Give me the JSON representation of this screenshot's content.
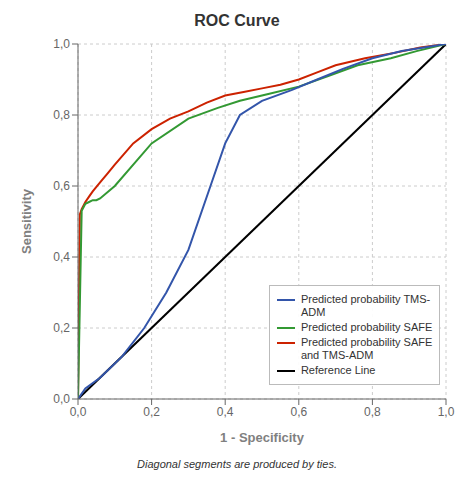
{
  "chart_data": {
    "type": "line",
    "title": "ROC Curve",
    "xlabel": "1 - Specificity",
    "ylabel": "Sensitivity",
    "annotations": [
      "Diagonal segments are produced by ties."
    ],
    "xlim": [
      0.0,
      1.0
    ],
    "ylim": [
      0.0,
      1.0
    ],
    "xticks": [
      {
        "value": 0.0,
        "label": "0,0"
      },
      {
        "value": 0.2,
        "label": "0,2"
      },
      {
        "value": 0.4,
        "label": "0,4"
      },
      {
        "value": 0.6,
        "label": "0,6"
      },
      {
        "value": 0.8,
        "label": "0,8"
      },
      {
        "value": 1.0,
        "label": "1,0"
      }
    ],
    "yticks": [
      {
        "value": 0.0,
        "label": "0,0"
      },
      {
        "value": 0.2,
        "label": "0,2"
      },
      {
        "value": 0.4,
        "label": "0,4"
      },
      {
        "value": 0.6,
        "label": "0,6"
      },
      {
        "value": 0.8,
        "label": "0,8"
      },
      {
        "value": 1.0,
        "label": "1,0"
      }
    ],
    "grid": true,
    "legend": "lower right",
    "series": [
      {
        "name": "Predicted probability TMS-\nADM",
        "color": "#3355aa",
        "x": [
          0.0,
          0.02,
          0.06,
          0.12,
          0.18,
          0.24,
          0.3,
          0.36,
          0.4,
          0.44,
          0.5,
          0.58,
          0.65,
          0.72,
          0.8,
          0.88,
          0.94,
          1.0
        ],
        "values": [
          0.0,
          0.03,
          0.06,
          0.12,
          0.2,
          0.3,
          0.42,
          0.6,
          0.72,
          0.8,
          0.84,
          0.87,
          0.9,
          0.93,
          0.96,
          0.98,
          0.99,
          1.0
        ]
      },
      {
        "name": "Predicted probability SAFE",
        "color": "#339933",
        "x": [
          0.0,
          0.01,
          0.02,
          0.03,
          0.04,
          0.05,
          0.06,
          0.1,
          0.2,
          0.3,
          0.38,
          0.44,
          0.52,
          0.6,
          0.68,
          0.76,
          0.85,
          0.92,
          1.0
        ],
        "values": [
          0.0,
          0.53,
          0.55,
          0.555,
          0.56,
          0.56,
          0.565,
          0.6,
          0.72,
          0.79,
          0.82,
          0.84,
          0.86,
          0.88,
          0.91,
          0.94,
          0.96,
          0.98,
          1.0
        ]
      },
      {
        "name": "Predicted probability SAFE\nand TMS-ADM",
        "color": "#cc2200",
        "x": [
          0.0,
          0.005,
          0.01,
          0.02,
          0.03,
          0.04,
          0.06,
          0.08,
          0.1,
          0.15,
          0.2,
          0.25,
          0.3,
          0.35,
          0.4,
          0.45,
          0.5,
          0.55,
          0.6,
          0.65,
          0.7,
          0.78,
          0.86,
          0.93,
          1.0
        ],
        "values": [
          0.0,
          0.52,
          0.535,
          0.555,
          0.57,
          0.585,
          0.61,
          0.635,
          0.66,
          0.72,
          0.76,
          0.79,
          0.81,
          0.835,
          0.855,
          0.865,
          0.875,
          0.885,
          0.9,
          0.92,
          0.94,
          0.96,
          0.975,
          0.99,
          1.0
        ]
      },
      {
        "name": "Reference Line",
        "color": "#000000",
        "x": [
          0,
          1
        ],
        "values": [
          0,
          1
        ]
      }
    ]
  }
}
